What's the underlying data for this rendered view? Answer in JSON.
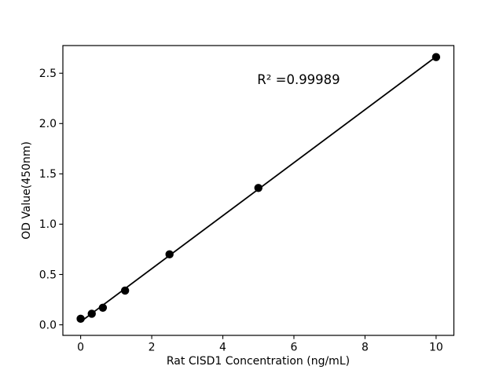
{
  "figure": {
    "background": "#ffffff",
    "axis_color": "#000000",
    "text_color": "#000000"
  },
  "chart_data": {
    "type": "scatter",
    "title": "",
    "xlabel": "Rat CISD1 Concentration (ng/mL)",
    "ylabel": "OD Value(450nm)",
    "annotation": "R² =0.99989",
    "r_squared": 0.99989,
    "x": [
      0,
      0.3125,
      0.625,
      1.25,
      2.5,
      5,
      10
    ],
    "y": [
      0.06,
      0.11,
      0.17,
      0.34,
      0.7,
      1.36,
      2.66
    ],
    "fit": "linear-regression-line",
    "xlim": [
      -0.5,
      10.5
    ],
    "ylim": [
      -0.105,
      2.775
    ],
    "xticks": [
      0,
      2,
      4,
      6,
      8,
      10
    ],
    "xtick_labels": [
      "0",
      "2",
      "4",
      "6",
      "8",
      "10"
    ],
    "yticks": [
      0,
      0.5,
      1.0,
      1.5,
      2.0,
      2.5
    ],
    "ytick_labels": [
      "0.0",
      "0.5",
      "1.0",
      "1.5",
      "2.0",
      "2.5"
    ],
    "grid": false,
    "legend": null,
    "marker_color": "#000000",
    "line_color": "#000000"
  }
}
